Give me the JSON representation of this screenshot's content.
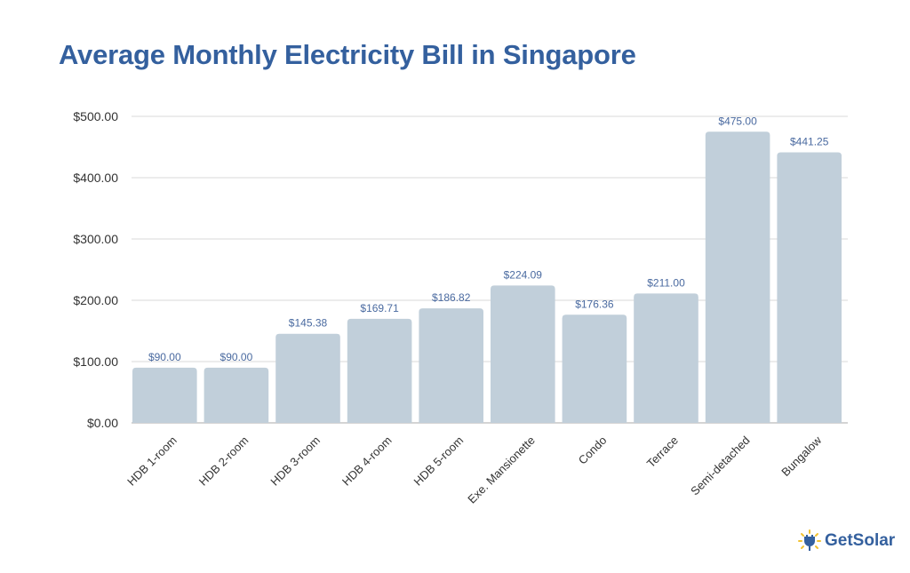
{
  "chart_data": {
    "type": "bar",
    "title": "Average Monthly Electricity Bill in Singapore",
    "categories": [
      "HDB 1-room",
      "HDB 2-room",
      "HDB 3-room",
      "HDB 4-room",
      "HDB 5-room",
      "Exe. Mansionette",
      "Condo",
      "Terrace",
      "Semi-detached",
      "Bungalow"
    ],
    "values": [
      90.0,
      90.0,
      145.38,
      169.71,
      186.82,
      224.09,
      176.36,
      211.0,
      475.0,
      441.25
    ],
    "data_labels": [
      "$90.00",
      "$90.00",
      "$145.38",
      "$169.71",
      "$186.82",
      "$224.09",
      "$176.36",
      "$211.00",
      "$475.00",
      "$441.25"
    ],
    "yticks": [
      0,
      100,
      200,
      300,
      400,
      500
    ],
    "ytick_labels": [
      "$0.00",
      "$100.00",
      "$200.00",
      "$300.00",
      "$400.00",
      "$500.00"
    ],
    "ylim": [
      0,
      500
    ],
    "xlabel": "",
    "ylabel": "",
    "grid": true,
    "legend": "none",
    "colors": {
      "bar": "#c1cfda",
      "label": "#4a6aa0",
      "grid": "#d9d9d9",
      "title": "#34609e"
    }
  },
  "brand": {
    "name": "GetSolar",
    "icon": "solar-plug-icon"
  }
}
